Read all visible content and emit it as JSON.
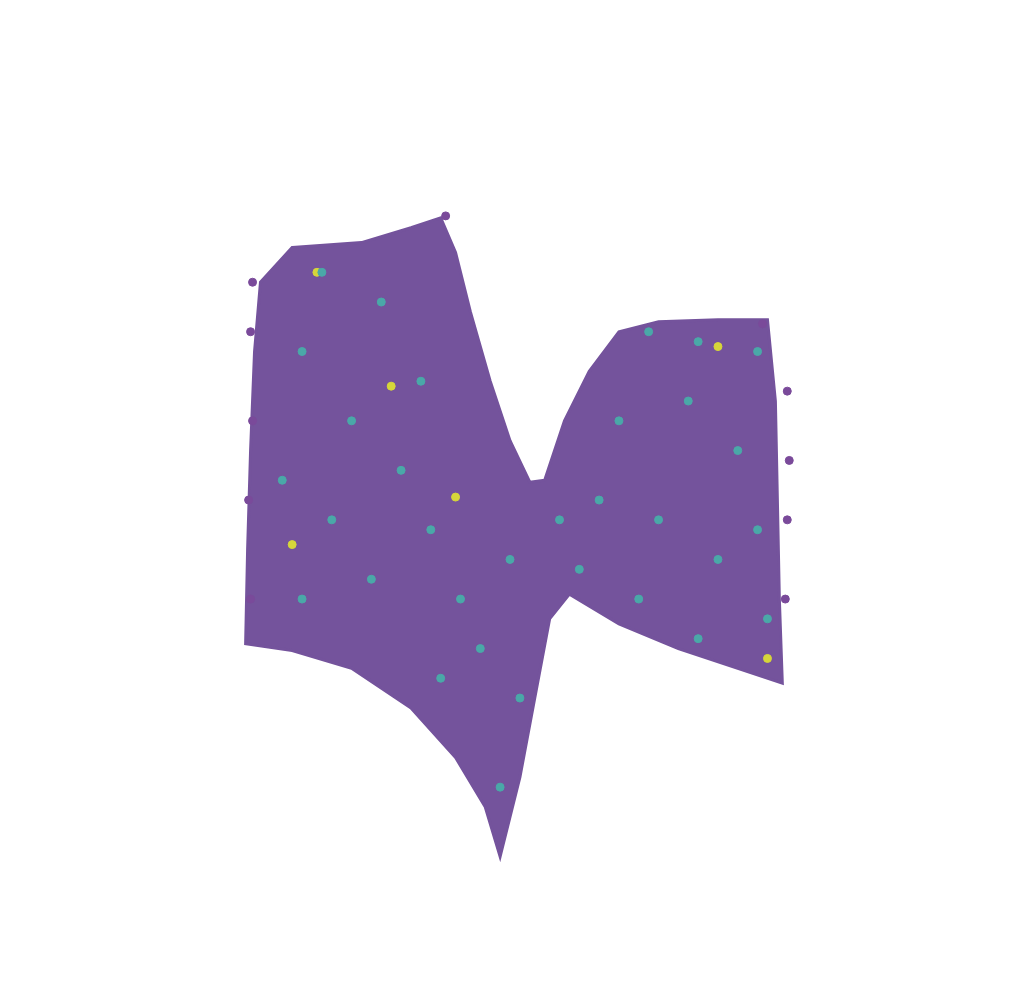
{
  "chart_data": {
    "type": "scatter",
    "xlim": [
      0,
      1023
    ],
    "ylim": [
      0,
      1008
    ],
    "tick_labels": false,
    "grid": false,
    "series": [
      {
        "type": "area",
        "color": "#74539c",
        "x": [
          290,
          360,
          410,
          440,
          455,
          470,
          490,
          510,
          530,
          545,
          565,
          590,
          620,
          660,
          720,
          770,
          778,
          780,
          782,
          785,
          740,
          680,
          620,
          570,
          550,
          535,
          520,
          500,
          485,
          455,
          410,
          350,
          290,
          243,
          245,
          248,
          252,
          258
        ],
        "values": [
          763,
          768,
          783,
          793,
          758,
          698,
          628,
          568,
          526,
          528,
          588,
          638,
          678,
          688,
          690,
          690,
          608,
          508,
          408,
          323,
          338,
          358,
          383,
          413,
          388,
          308,
          228,
          148,
          198,
          248,
          298,
          338,
          356,
          363,
          458,
          558,
          658,
          728
        ]
      },
      {
        "color": "#7a4a9a",
        "marker": "circle",
        "x": [
          250,
          248,
          250,
          246,
          248,
          790,
          792,
          790,
          788,
          445,
          765
        ],
        "values": [
          728,
          678,
          588,
          508,
          408,
          618,
          548,
          488,
          408,
          795,
          686
        ]
      },
      {
        "color": "#4aa8a8",
        "marker": "circle",
        "x": [
          320,
          380,
          300,
          350,
          420,
          280,
          330,
          400,
          300,
          370,
          430,
          460,
          480,
          440,
          510,
          520,
          500,
          560,
          650,
          700,
          760,
          620,
          690,
          740,
          600,
          660,
          720,
          770,
          640,
          700,
          580,
          760
        ],
        "values": [
          738,
          708,
          658,
          588,
          628,
          528,
          488,
          538,
          408,
          428,
          478,
          408,
          358,
          328,
          448,
          308,
          218,
          488,
          678,
          668,
          658,
          588,
          608,
          558,
          508,
          488,
          448,
          388,
          408,
          368,
          438,
          478
        ]
      },
      {
        "color": "#d6d63a",
        "marker": "circle",
        "x": [
          315,
          390,
          290,
          720,
          455,
          770
        ],
        "values": [
          738,
          623,
          463,
          663,
          511,
          348
        ]
      }
    ]
  }
}
